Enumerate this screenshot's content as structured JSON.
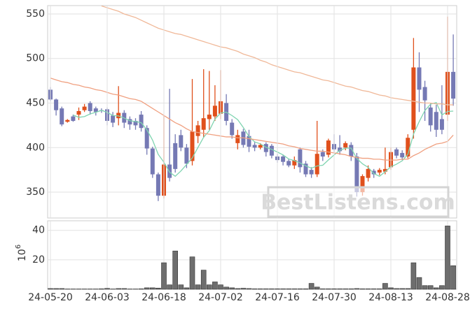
{
  "watermark": "BestListens.com",
  "chart_data": [
    {
      "type": "candlestick",
      "open": [
        465,
        454,
        444,
        429,
        435,
        437,
        442,
        450,
        444,
        442,
        443,
        436,
        433,
        439,
        432,
        430,
        437,
        422,
        399,
        370,
        346,
        381,
        405,
        414,
        400,
        385,
        413,
        420,
        432,
        435,
        438,
        450,
        428,
        405,
        418,
        413,
        403,
        400,
        404,
        402,
        390,
        390,
        385,
        380,
        398,
        382,
        375,
        370,
        395,
        392,
        404,
        400,
        400,
        403,
        390,
        350,
        366,
        374,
        372,
        373,
        378,
        398,
        394,
        390,
        420,
        490,
        468,
        445,
        440,
        432,
        437,
        485
      ],
      "high": [
        468,
        455,
        446,
        432,
        437,
        445,
        449,
        452,
        446,
        444,
        445,
        440,
        469,
        442,
        435,
        433,
        441,
        425,
        401,
        372,
        436,
        466,
        415,
        420,
        404,
        477,
        430,
        488,
        486,
        470,
        487,
        460,
        432,
        420,
        421,
        420,
        406,
        405,
        406,
        404,
        393,
        392,
        387,
        390,
        400,
        385,
        378,
        430,
        398,
        410,
        415,
        414,
        407,
        406,
        394,
        370,
        380,
        376,
        377,
        400,
        400,
        400,
        397,
        415,
        523,
        507,
        475,
        450,
        448,
        470,
        547,
        527
      ],
      "low": [
        452,
        436,
        424,
        428,
        429,
        431,
        440,
        437,
        436,
        439,
        425,
        423,
        425,
        422,
        420,
        420,
        418,
        392,
        366,
        340,
        343,
        362,
        372,
        396,
        377,
        380,
        405,
        411,
        420,
        430,
        432,
        425,
        410,
        398,
        400,
        395,
        396,
        398,
        390,
        388,
        383,
        380,
        378,
        376,
        372,
        367,
        366,
        367,
        385,
        389,
        395,
        392,
        397,
        385,
        345,
        346,
        362,
        366,
        369,
        370,
        375,
        388,
        386,
        388,
        410,
        440,
        430,
        418,
        412,
        415,
        430,
        447
      ],
      "close": [
        454,
        442,
        426,
        431,
        430,
        441,
        446,
        441,
        440,
        441,
        430,
        428,
        439,
        428,
        426,
        425,
        422,
        399,
        370,
        346,
        381,
        366,
        376,
        400,
        382,
        418,
        425,
        433,
        437,
        447,
        452,
        430,
        414,
        414,
        403,
        401,
        400,
        403,
        395,
        391,
        386,
        384,
        380,
        386,
        378,
        370,
        370,
        393,
        390,
        408,
        398,
        396,
        405,
        390,
        350,
        368,
        376,
        370,
        375,
        376,
        395,
        391,
        389,
        411,
        490,
        465,
        453,
        425,
        420,
        420,
        485,
        455
      ],
      "up_color": "#e0501c",
      "down_color": "#7579b4",
      "series": [
        {
          "color": "#7fd4b0",
          "values": [
            null,
            null,
            null,
            null,
            436.6,
            434,
            434.8,
            437.8,
            439.6,
            441.8,
            439.6,
            436,
            435.6,
            433.2,
            430.2,
            429.2,
            428,
            420,
            408.4,
            392.4,
            383.6,
            372.4,
            367.8,
            373.8,
            381,
            388.4,
            400.2,
            411.6,
            419,
            432,
            438.8,
            439.8,
            436,
            431.4,
            422.6,
            412.4,
            406.4,
            404.2,
            400.4,
            398,
            395,
            391.8,
            387.2,
            385.4,
            382.8,
            379.6,
            376.8,
            379.4,
            380.2,
            386.2,
            391.8,
            397,
            399.4,
            399.4,
            387.8,
            381.8,
            377.8,
            370.8,
            367.8,
            373,
            378.4,
            381.4,
            385.2,
            392.4,
            415.2,
            429.2,
            441.6,
            448.8,
            450.6,
            436.6,
            440.6,
            441
          ]
        },
        {
          "color": "#f0a080",
          "values": [
            478,
            476,
            474,
            473,
            471,
            470,
            468,
            467,
            465,
            464,
            462,
            460,
            459,
            457,
            455,
            454,
            452,
            448,
            444,
            440,
            436,
            432,
            428,
            425,
            421,
            418,
            417,
            416,
            415,
            414,
            413,
            412,
            412,
            411,
            411,
            410,
            409,
            408,
            407,
            406,
            405,
            404,
            402,
            401,
            399,
            398,
            397,
            396,
            396,
            395,
            394,
            393,
            392,
            390,
            389,
            388,
            388,
            387,
            387,
            386,
            386,
            386,
            387,
            387,
            391,
            394,
            398,
            401,
            404,
            405,
            407,
            414
          ]
        },
        {
          "color": "#f0b898",
          "values": [
            null,
            null,
            null,
            null,
            null,
            null,
            null,
            null,
            null,
            559,
            557,
            555,
            553,
            550,
            548,
            546,
            543,
            540,
            537,
            534,
            532,
            530,
            528,
            527,
            525,
            523,
            521,
            519,
            517,
            515,
            513,
            512,
            510,
            508,
            505,
            503,
            501,
            498,
            496,
            493,
            491,
            489,
            487,
            485,
            484,
            482,
            480,
            478,
            476,
            475,
            473,
            471,
            469,
            468,
            466,
            464,
            463,
            461,
            459,
            458,
            456,
            455,
            454,
            453,
            452,
            451,
            450,
            450,
            449,
            449,
            448,
            448
          ]
        }
      ],
      "ylim": [
        321,
        559.4
      ],
      "yticks": [
        350,
        400,
        450,
        500,
        550
      ],
      "grid": true
    },
    {
      "type": "bar",
      "categories": [
        "24-05-20",
        null,
        null,
        null,
        null,
        null,
        null,
        null,
        null,
        null,
        "24-06-03",
        null,
        null,
        null,
        null,
        null,
        null,
        null,
        null,
        null,
        "24-06-18",
        null,
        null,
        null,
        null,
        null,
        null,
        null,
        null,
        null,
        "24-07-02",
        null,
        null,
        null,
        null,
        null,
        null,
        null,
        null,
        null,
        "24-07-16",
        null,
        null,
        null,
        null,
        null,
        null,
        null,
        null,
        null,
        "24-07-30",
        null,
        null,
        null,
        null,
        null,
        null,
        null,
        null,
        null,
        "24-08-13",
        null,
        null,
        null,
        null,
        null,
        null,
        null,
        null,
        null,
        "24-08-28",
        null
      ],
      "values": [
        0.5,
        0.5,
        0.5,
        0.2,
        0.2,
        0.2,
        0.2,
        0.2,
        0.2,
        0.3,
        0.6,
        0.2,
        0.5,
        0.5,
        0.2,
        0.2,
        0.3,
        1,
        1,
        0.8,
        18,
        3,
        26,
        3,
        1,
        22,
        3,
        13,
        3,
        5,
        3,
        1.5,
        1,
        0.5,
        0.7,
        0.5,
        0.3,
        0.3,
        0.3,
        0.3,
        0.3,
        0.3,
        0.3,
        0.3,
        0.3,
        0.3,
        4,
        1.5,
        0.3,
        0.3,
        0.3,
        0.3,
        0.3,
        0.3,
        0.5,
        0.3,
        0.3,
        0.3,
        0.3,
        4,
        1,
        0.5,
        0.5,
        0.5,
        18,
        8,
        2.5,
        2.5,
        1,
        2.5,
        43,
        16
      ],
      "color": "#6e6e6e",
      "ylabel_base": "10",
      "ylabel_exp": "6",
      "ylim": [
        0,
        46.5
      ],
      "yticks": [
        20,
        40
      ],
      "grid": true
    }
  ]
}
